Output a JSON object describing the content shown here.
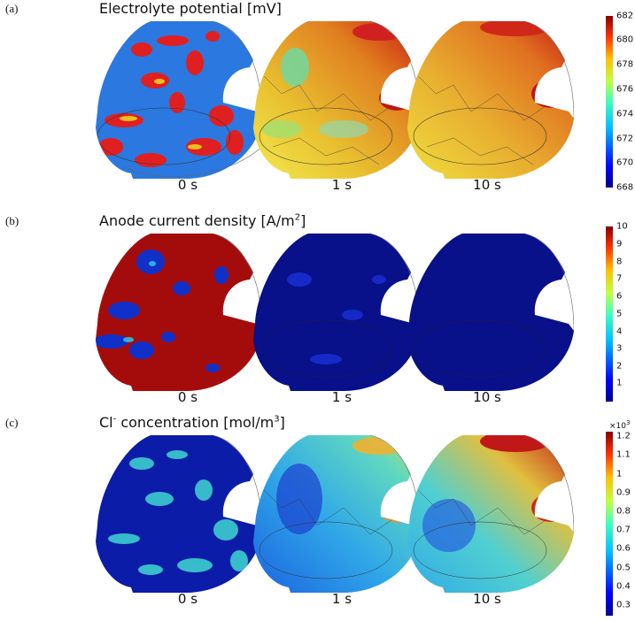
{
  "panels": [
    {
      "label": "(a)",
      "title": "Electrolyte potential [mV]",
      "times": [
        "0 s",
        "1 s",
        "10 s"
      ],
      "colorbar_ticks": [
        "682",
        "680",
        "678",
        "676",
        "674",
        "672",
        "670",
        "668"
      ],
      "colorbar_exponent": ""
    },
    {
      "label": "(b)",
      "title_main": "Anode current density [A/m",
      "title_sup": "2",
      "title_end": "]",
      "times": [
        "0 s",
        "1 s",
        "10 s"
      ],
      "colorbar_ticks": [
        "10",
        "9",
        "8",
        "7",
        "6",
        "5",
        "4",
        "3",
        "2",
        "1"
      ],
      "colorbar_exponent": ""
    },
    {
      "label": "(c)",
      "title_main": "Cl",
      "title_sup": "-",
      "title_mid": " concentration [mol/m",
      "title_sup2": "3",
      "title_end": "]",
      "times": [
        "0 s",
        "1 s",
        "10 s"
      ],
      "colorbar_ticks": [
        "1.2",
        "1.1",
        "1",
        "0.9",
        "0.8",
        "0.7",
        "0.6",
        "0.5",
        "0.4",
        "0.3"
      ],
      "colorbar_exponent_base": "×10",
      "colorbar_exponent_power": "3"
    }
  ],
  "colors": {
    "jet_low": "#00008f",
    "jet_blue": "#0050ff",
    "jet_cyan": "#30e0e0",
    "jet_yellow": "#f0e030",
    "jet_orange": "#f08020",
    "jet_high": "#9a0000"
  }
}
